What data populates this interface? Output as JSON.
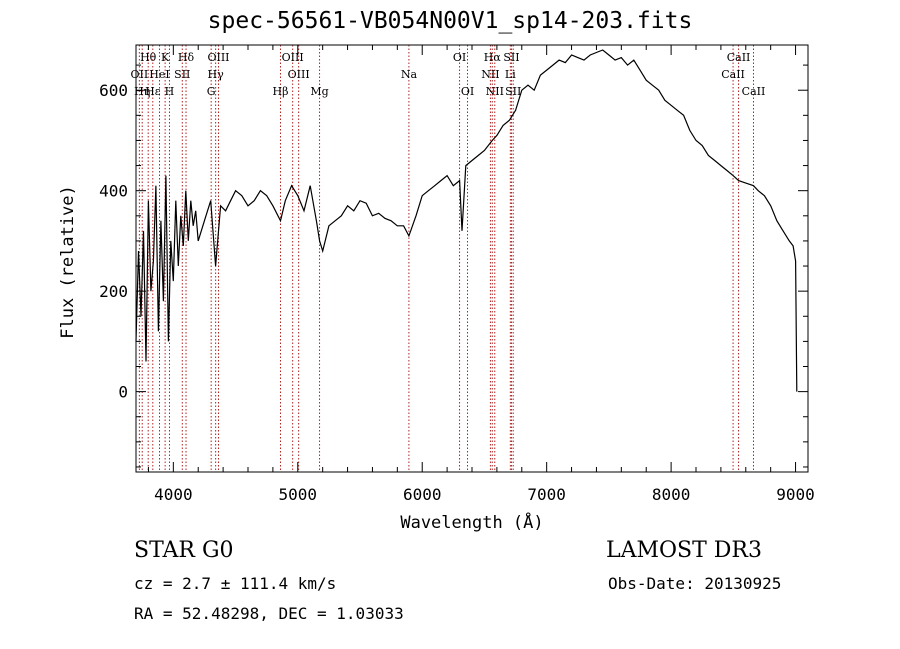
{
  "chart_data": {
    "type": "line",
    "title": "spec-56561-VB054N00V1_sp14-203.fits",
    "xlabel": "Wavelength (Å)",
    "ylabel": "Flux (relative)",
    "xlim": [
      3700,
      9100
    ],
    "ylim": [
      -160,
      690
    ],
    "xticks": [
      4000,
      5000,
      6000,
      7000,
      8000,
      9000
    ],
    "xtick_labels": [
      "4000",
      "5000",
      "6000",
      "7000",
      "8000",
      "9000"
    ],
    "yticks": [
      0,
      200,
      400,
      600
    ],
    "ytick_labels": [
      "0",
      "200",
      "400",
      "600"
    ],
    "series": [
      {
        "name": "flux",
        "x": [
          3700,
          3720,
          3740,
          3760,
          3780,
          3800,
          3820,
          3840,
          3860,
          3880,
          3900,
          3920,
          3940,
          3960,
          3980,
          4000,
          4020,
          4040,
          4060,
          4080,
          4100,
          4120,
          4140,
          4160,
          4180,
          4200,
          4250,
          4300,
          4340,
          4380,
          4420,
          4460,
          4500,
          4550,
          4600,
          4650,
          4700,
          4750,
          4800,
          4861,
          4900,
          4950,
          5000,
          5050,
          5100,
          5150,
          5175,
          5200,
          5250,
          5300,
          5350,
          5400,
          5450,
          5500,
          5550,
          5600,
          5650,
          5700,
          5750,
          5800,
          5850,
          5893,
          5950,
          6000,
          6050,
          6100,
          6150,
          6200,
          6250,
          6300,
          6320,
          6350,
          6400,
          6450,
          6500,
          6563,
          6600,
          6650,
          6700,
          6750,
          6800,
          6850,
          6900,
          6950,
          7000,
          7050,
          7100,
          7150,
          7200,
          7250,
          7300,
          7350,
          7400,
          7450,
          7500,
          7550,
          7600,
          7650,
          7700,
          7750,
          7800,
          7850,
          7900,
          7950,
          8000,
          8050,
          8100,
          8150,
          8200,
          8250,
          8300,
          8350,
          8400,
          8450,
          8498,
          8542,
          8600,
          8662,
          8700,
          8750,
          8800,
          8850,
          8900,
          8950,
          8980,
          9000,
          9010
        ],
        "y": [
          100,
          280,
          150,
          320,
          60,
          380,
          200,
          260,
          410,
          120,
          340,
          180,
          430,
          100,
          300,
          220,
          380,
          250,
          350,
          290,
          400,
          300,
          380,
          330,
          360,
          300,
          340,
          380,
          250,
          370,
          360,
          380,
          400,
          390,
          370,
          380,
          400,
          390,
          370,
          340,
          380,
          410,
          390,
          360,
          410,
          340,
          300,
          280,
          330,
          340,
          350,
          370,
          360,
          380,
          375,
          350,
          355,
          345,
          340,
          330,
          330,
          310,
          350,
          390,
          400,
          410,
          420,
          430,
          410,
          420,
          320,
          450,
          460,
          470,
          480,
          500,
          510,
          530,
          540,
          560,
          600,
          610,
          600,
          630,
          640,
          650,
          660,
          655,
          670,
          665,
          660,
          670,
          675,
          680,
          670,
          660,
          665,
          650,
          660,
          640,
          620,
          610,
          600,
          580,
          570,
          560,
          550,
          520,
          500,
          490,
          470,
          460,
          450,
          440,
          430,
          420,
          415,
          410,
          400,
          390,
          370,
          340,
          320,
          300,
          290,
          260,
          0
        ]
      }
    ],
    "lines": [
      {
        "label": "Hθ",
        "wavelength": 3798,
        "row": 1
      },
      {
        "label": "K",
        "wavelength": 3934,
        "row": 1
      },
      {
        "label": "Hδ",
        "wavelength": 4102,
        "row": 1
      },
      {
        "label": "OIII",
        "wavelength": 4363,
        "row": 1
      },
      {
        "label": "OIII",
        "wavelength": 4959,
        "row": 1
      },
      {
        "label": "OI",
        "wavelength": 6300,
        "row": 1
      },
      {
        "label": "Hα",
        "wavelength": 6563,
        "row": 1
      },
      {
        "label": "SII",
        "wavelength": 6717,
        "row": 1
      },
      {
        "label": "CaII",
        "wavelength": 8542,
        "row": 1
      },
      {
        "label": "OII",
        "wavelength": 3727,
        "row": 2
      },
      {
        "label": "HeI",
        "wavelength": 3889,
        "row": 2
      },
      {
        "label": "SII",
        "wavelength": 4072,
        "row": 2
      },
      {
        "label": "Hγ",
        "wavelength": 4340,
        "row": 2
      },
      {
        "label": "OIII",
        "wavelength": 5007,
        "row": 2
      },
      {
        "label": "Na",
        "wavelength": 5893,
        "row": 2
      },
      {
        "label": "NII",
        "wavelength": 6548,
        "row": 2
      },
      {
        "label": "Li",
        "wavelength": 6708,
        "row": 2
      },
      {
        "label": "CaII",
        "wavelength": 8498,
        "row": 2
      },
      {
        "label": "Hε",
        "wavelength": 3835,
        "row": 3
      },
      {
        "label": "Hη",
        "wavelength": 3750,
        "row": 3
      },
      {
        "label": "H",
        "wavelength": 3969,
        "row": 3
      },
      {
        "label": "G",
        "wavelength": 4304,
        "row": 3
      },
      {
        "label": "Hβ",
        "wavelength": 4861,
        "row": 3
      },
      {
        "label": "Mg",
        "wavelength": 5175,
        "row": 3
      },
      {
        "label": "OI",
        "wavelength": 6364,
        "row": 3
      },
      {
        "label": "NII",
        "wavelength": 6583,
        "row": 3
      },
      {
        "label": "SII",
        "wavelength": 6731,
        "row": 3
      },
      {
        "label": "CaII",
        "wavelength": 8662,
        "row": 3
      }
    ]
  },
  "footer": {
    "class_text": "STAR    G0",
    "survey_text": "LAMOST DR3",
    "cz_text": "cz = 2.7 ± 111.4 km/s",
    "obs_text": "Obs-Date: 20130925",
    "radec_text": "RA =  52.48298, DEC =   1.03033"
  },
  "colors": {
    "line_marker": "#b22222",
    "spectrum": "#000000",
    "axis": "#000000"
  }
}
